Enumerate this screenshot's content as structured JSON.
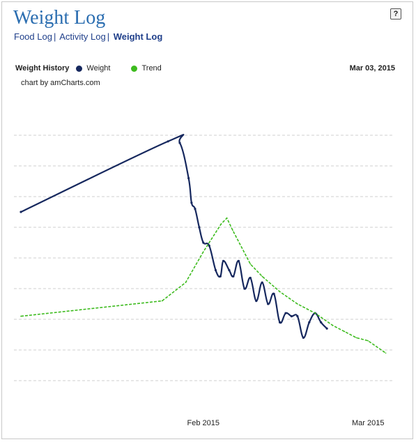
{
  "page": {
    "title": "Weight Log",
    "help_label": "?",
    "nav": [
      "Food Log",
      "Activity Log",
      "Weight Log"
    ],
    "active_nav": 2,
    "date": "Mar 03, 2015",
    "credit": "chart by amCharts.com"
  },
  "colors": {
    "weight": "#16285e",
    "trend": "#3dbb1e",
    "grid": "#cfcfcf",
    "title": "#2a6db0"
  },
  "chart_data": {
    "type": "line",
    "title": "Weight History",
    "xlabel": "",
    "ylabel": "",
    "x_tick_labels": [
      "Feb 2015",
      "Mar 2015"
    ],
    "x_ticks_day": [
      31,
      59
    ],
    "xlim_day": [
      0,
      63
    ],
    "ylim": [
      0,
      100
    ],
    "grid": true,
    "legend_placement": "top-left",
    "series": [
      {
        "name": "Weight",
        "style": "solid",
        "color": "#16285e",
        "points": [
          [
            0,
            65
          ],
          [
            25,
            88
          ],
          [
            27,
            87.5
          ],
          [
            28.5,
            76
          ],
          [
            29,
            68
          ],
          [
            29.6,
            66
          ],
          [
            30.3,
            60
          ],
          [
            31,
            55
          ],
          [
            32,
            54
          ],
          [
            33.1,
            46
          ],
          [
            33.9,
            44
          ],
          [
            34.4,
            49
          ],
          [
            35.4,
            46
          ],
          [
            36.1,
            44
          ],
          [
            37,
            49
          ],
          [
            38,
            40
          ],
          [
            39,
            43.5
          ],
          [
            40,
            36
          ],
          [
            41,
            42
          ],
          [
            42,
            35
          ],
          [
            43,
            38.3
          ],
          [
            44,
            29
          ],
          [
            45,
            32
          ],
          [
            46,
            31
          ],
          [
            47,
            31
          ],
          [
            48,
            24
          ],
          [
            49,
            29
          ],
          [
            50,
            32
          ],
          [
            51,
            29
          ],
          [
            52,
            27
          ]
        ]
      },
      {
        "name": "Trend",
        "style": "dashed",
        "color": "#3dbb1e",
        "points": [
          [
            0,
            31
          ],
          [
            24,
            36
          ],
          [
            28,
            42
          ],
          [
            31,
            52
          ],
          [
            34,
            61
          ],
          [
            35,
            63
          ],
          [
            36,
            59
          ],
          [
            39,
            48
          ],
          [
            41,
            44
          ],
          [
            44,
            39
          ],
          [
            47,
            35
          ],
          [
            50,
            32
          ],
          [
            53,
            28
          ],
          [
            55,
            26
          ],
          [
            57,
            24
          ],
          [
            59,
            23
          ],
          [
            62,
            19
          ]
        ]
      }
    ]
  }
}
